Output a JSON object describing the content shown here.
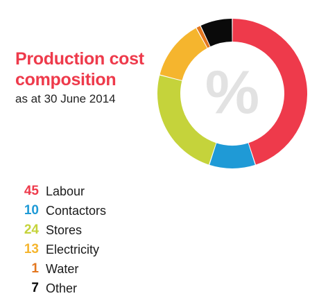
{
  "title": {
    "line1": "Production cost",
    "line2": "composition",
    "subtitle": "as at 30 June 2014"
  },
  "center_symbol": "%",
  "colors": {
    "title": "#ee3a4b",
    "center_symbol": "#e2e2e2"
  },
  "chart_data": {
    "type": "pie",
    "variant": "donut",
    "title": "Production cost composition",
    "subtitle": "as at 30 June 2014",
    "unit": "%",
    "start_angle": "12 o'clock",
    "direction": "clockwise",
    "categories": [
      "Labour",
      "Contactors",
      "Stores",
      "Electricity",
      "Water",
      "Other"
    ],
    "values": [
      45,
      10,
      24,
      13,
      1,
      7
    ],
    "colors": [
      "#ee3a4b",
      "#1f9ad6",
      "#c5d33b",
      "#f5b52e",
      "#e3761e",
      "#0a0a0a"
    ],
    "legend_position": "bottom-left"
  }
}
